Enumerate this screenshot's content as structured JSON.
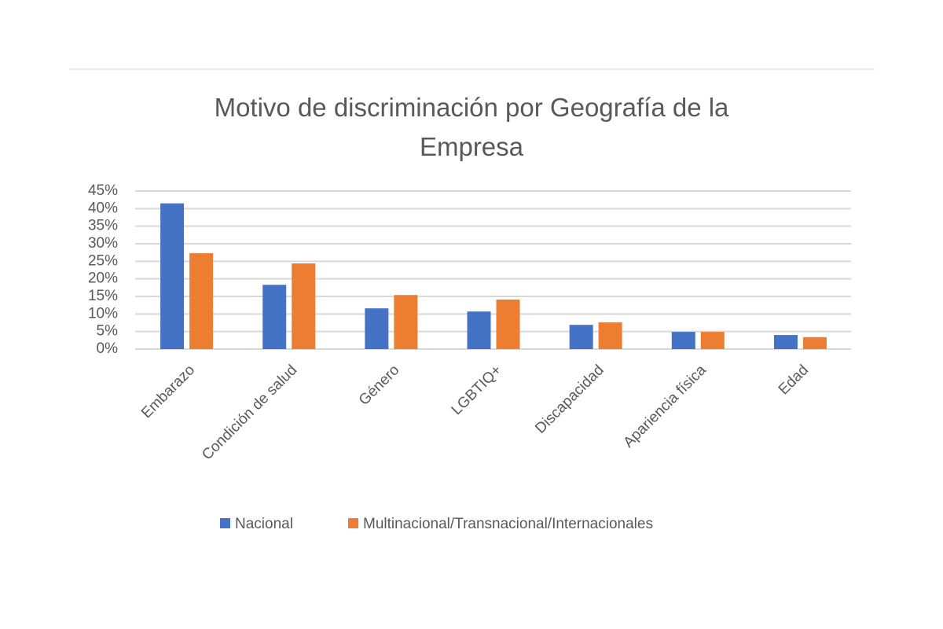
{
  "chart_data": {
    "type": "bar",
    "title": "Motivo de discriminación por Geografía de la Empresa",
    "categories": [
      "Embarazo",
      "Condición de salud",
      "Género",
      "LGBTIQ+",
      "Discapacidad",
      "Apariencia física",
      "Edad"
    ],
    "series": [
      {
        "name": "Nacional",
        "color": "#4472c4",
        "values": [
          41.5,
          18.3,
          11.6,
          10.7,
          6.9,
          4.9,
          4.0
        ]
      },
      {
        "name": "Multinacional/Transnacional/Internacionales",
        "color": "#ed7d31",
        "values": [
          27.3,
          24.4,
          15.4,
          14.1,
          7.6,
          4.9,
          3.4
        ]
      }
    ],
    "ylim": [
      0,
      45
    ],
    "yticks": [
      {
        "value": 0,
        "label": "0%"
      },
      {
        "value": 5,
        "label": "5%"
      },
      {
        "value": 10,
        "label": "10%"
      },
      {
        "value": 15,
        "label": "15%"
      },
      {
        "value": 20,
        "label": "20%"
      },
      {
        "value": 25,
        "label": "25%"
      },
      {
        "value": 30,
        "label": "30%"
      },
      {
        "value": 35,
        "label": "35%"
      },
      {
        "value": 40,
        "label": "40%"
      },
      {
        "value": 45,
        "label": "45%"
      }
    ],
    "grid": true
  }
}
